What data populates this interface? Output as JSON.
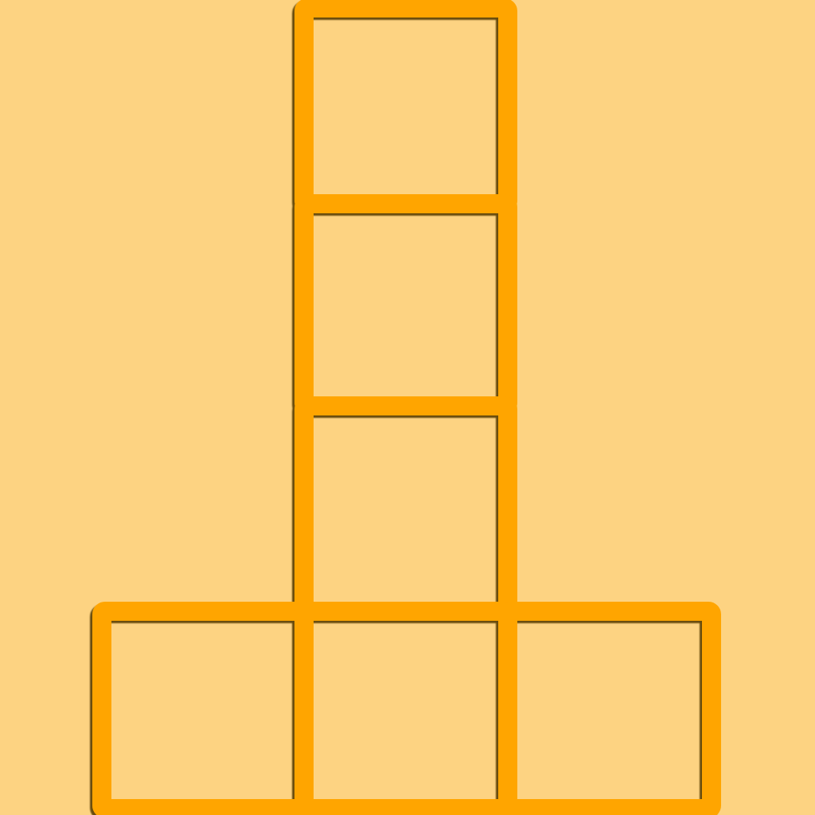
{
  "figure": {
    "description_shape": "inverted-T arrangement of six squares",
    "rows": [
      {
        "row": 0,
        "cells": [
          1
        ]
      },
      {
        "row": 1,
        "cells": [
          1
        ]
      },
      {
        "row": 2,
        "cells": [
          1
        ]
      },
      {
        "row": 3,
        "cells": [
          0,
          1,
          2
        ]
      }
    ],
    "colors": {
      "background": "#FDD382",
      "frame": "#FFA500",
      "shadow": "#5A3C00"
    }
  }
}
